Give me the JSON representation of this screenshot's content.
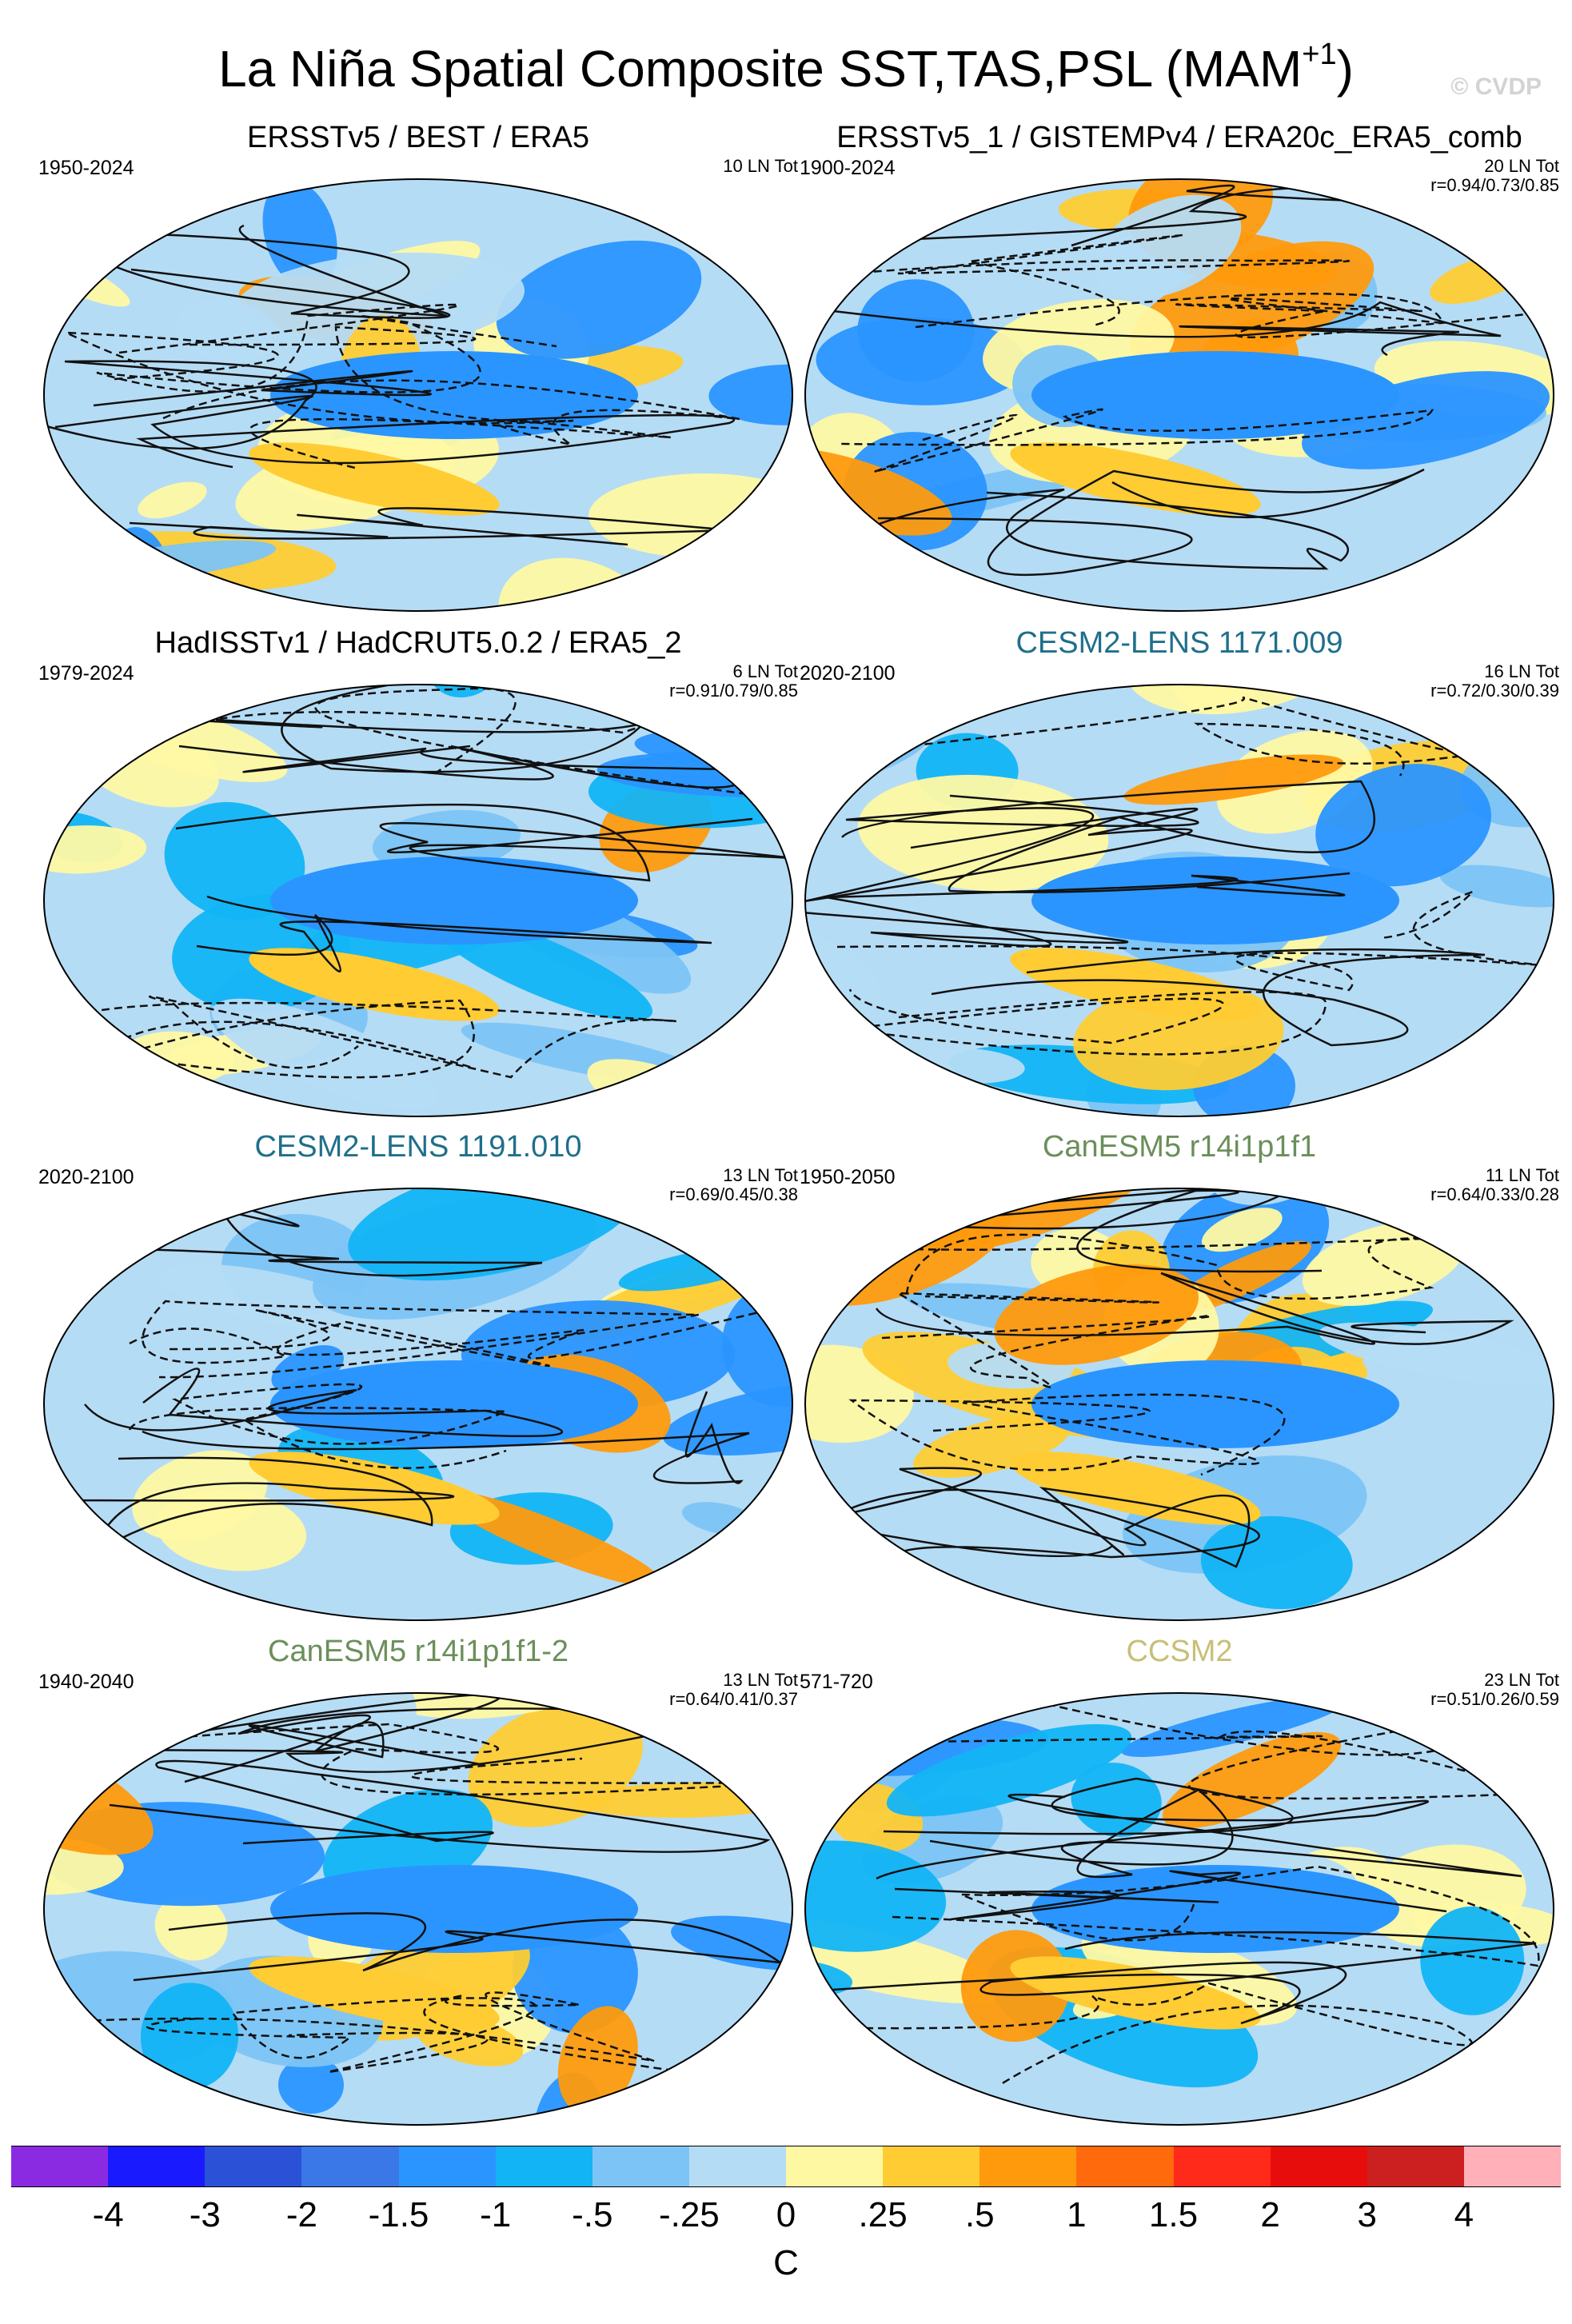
{
  "header": {
    "title": "La Niña Spatial Composite SST,TAS,PSL (MAM",
    "title_sup": "+1",
    "title_end": ")",
    "watermark": "© CVDP"
  },
  "panels": [
    {
      "title": "ERSSTv5 / BEST / ERA5",
      "title_color": "#000000",
      "period": "1950-2024",
      "count": "10 LN Tot",
      "corr": ""
    },
    {
      "title": "ERSSTv5_1 / GISTEMPv4 / ERA20c_ERA5_comb",
      "title_color": "#000000",
      "period": "1900-2024",
      "count": "20 LN Tot",
      "corr": "r=0.94/0.73/0.85"
    },
    {
      "title": "HadISSTv1 / HadCRUT5.0.2 / ERA5_2",
      "title_color": "#000000",
      "period": "1979-2024",
      "count": "6 LN Tot",
      "corr": "r=0.91/0.79/0.85"
    },
    {
      "title": "CESM2-LENS 1171.009",
      "title_color": "#1f6f8b",
      "period": "2020-2100",
      "count": "16 LN Tot",
      "corr": "r=0.72/0.30/0.39"
    },
    {
      "title": "CESM2-LENS 1191.010",
      "title_color": "#1f6f8b",
      "period": "2020-2100",
      "count": "13 LN Tot",
      "corr": "r=0.69/0.45/0.38"
    },
    {
      "title": "CanESM5 r14i1p1f1",
      "title_color": "#6b8f5a",
      "period": "1950-2050",
      "count": "11 LN Tot",
      "corr": "r=0.64/0.33/0.28"
    },
    {
      "title": "CanESM5 r14i1p1f1-2",
      "title_color": "#6b8f5a",
      "period": "1940-2040",
      "count": "13 LN Tot",
      "corr": "r=0.64/0.41/0.37"
    },
    {
      "title": "CCSM2",
      "title_color": "#c8bf78",
      "period": "571-720",
      "count": "23 LN Tot",
      "corr": "r=0.51/0.26/0.59"
    }
  ],
  "colorbar": {
    "colors": [
      "#8a2be2",
      "#1a1aff",
      "#2b52d6",
      "#3a78e8",
      "#2a95ff",
      "#12b4f5",
      "#7cc4f5",
      "#b5dcf5",
      "#fff8a3",
      "#ffcc33",
      "#ff9a0d",
      "#ff6a0d",
      "#ff2a1a",
      "#e80d0d",
      "#cc2020",
      "#ffb0b8"
    ],
    "ticks": [
      "-4",
      "-3",
      "-2",
      "-1.5",
      "-1",
      "-.5",
      "-.25",
      "0",
      ".25",
      ".5",
      "1",
      "1.5",
      "2",
      "3",
      "4"
    ],
    "units": "C"
  }
}
